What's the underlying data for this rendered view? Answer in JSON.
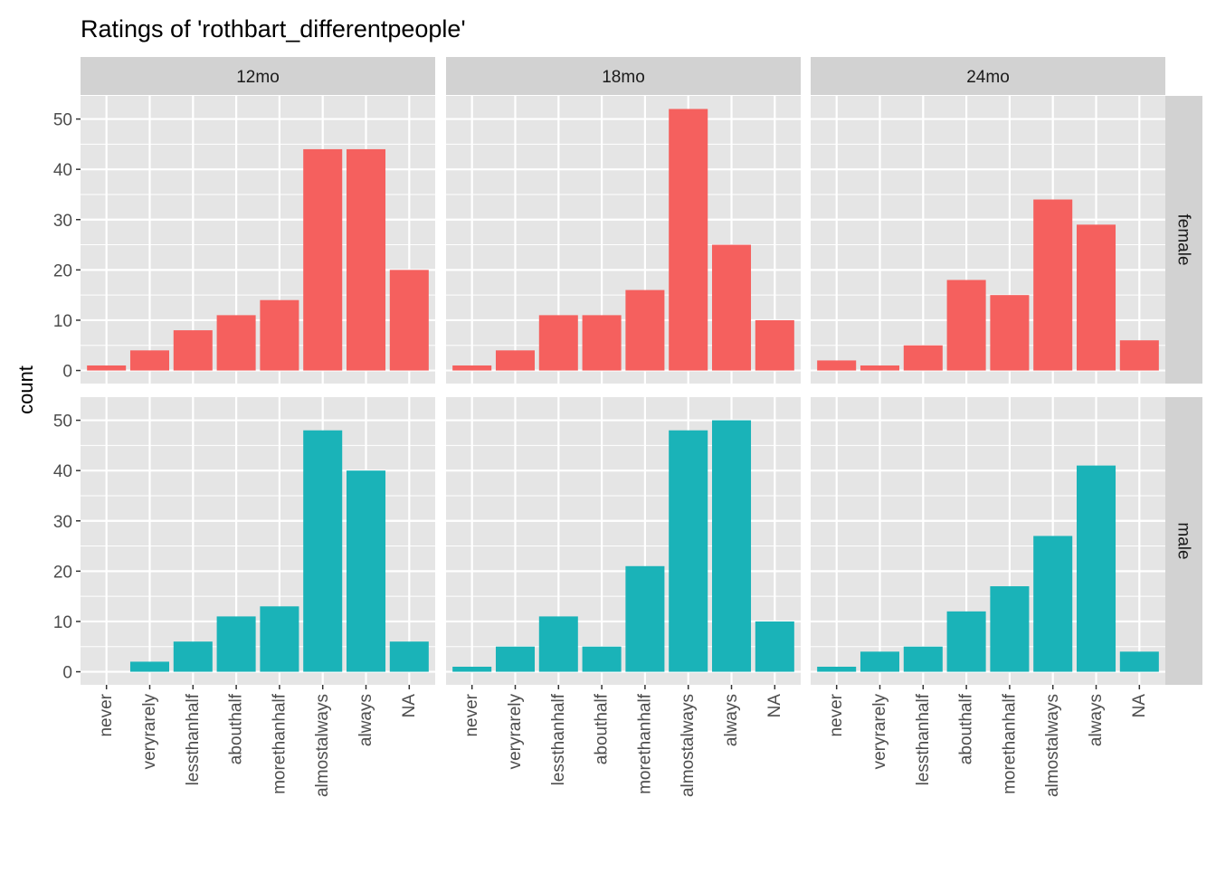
{
  "colors": {
    "female": "#F5605E",
    "male": "#1AB3B8",
    "panel_bg": "#E5E5E5",
    "strip_bg": "#D2D2D2",
    "grid": "#FFFFFF",
    "axis_text": "#4D4D4D",
    "title_text": "#000000"
  },
  "chart_data": {
    "type": "bar",
    "title": "Ratings of 'rothbart_differentpeople'",
    "xlabel": "",
    "ylabel": "count",
    "ylim": [
      0,
      55
    ],
    "y_ticks": [
      0,
      10,
      20,
      30,
      40,
      50
    ],
    "categories": [
      "never",
      "veryrarely",
      "lessthanhalf",
      "abouthalf",
      "morethanhalf",
      "almostalways",
      "always",
      "NA"
    ],
    "facet_columns": [
      "12mo",
      "18mo",
      "24mo"
    ],
    "facet_rows": [
      "female",
      "male"
    ],
    "grid": true,
    "legend": "none",
    "panels": [
      {
        "column": "12mo",
        "row": "female",
        "values": [
          1,
          4,
          8,
          11,
          14,
          44,
          44,
          20
        ]
      },
      {
        "column": "18mo",
        "row": "female",
        "values": [
          1,
          4,
          11,
          11,
          16,
          52,
          25,
          10
        ]
      },
      {
        "column": "24mo",
        "row": "female",
        "values": [
          2,
          1,
          5,
          18,
          15,
          34,
          29,
          6
        ]
      },
      {
        "column": "12mo",
        "row": "male",
        "values": [
          0,
          2,
          6,
          11,
          13,
          48,
          40,
          6
        ]
      },
      {
        "column": "18mo",
        "row": "male",
        "values": [
          1,
          5,
          11,
          5,
          21,
          48,
          50,
          10
        ]
      },
      {
        "column": "24mo",
        "row": "male",
        "values": [
          1,
          4,
          5,
          12,
          17,
          27,
          41,
          4
        ]
      }
    ]
  }
}
